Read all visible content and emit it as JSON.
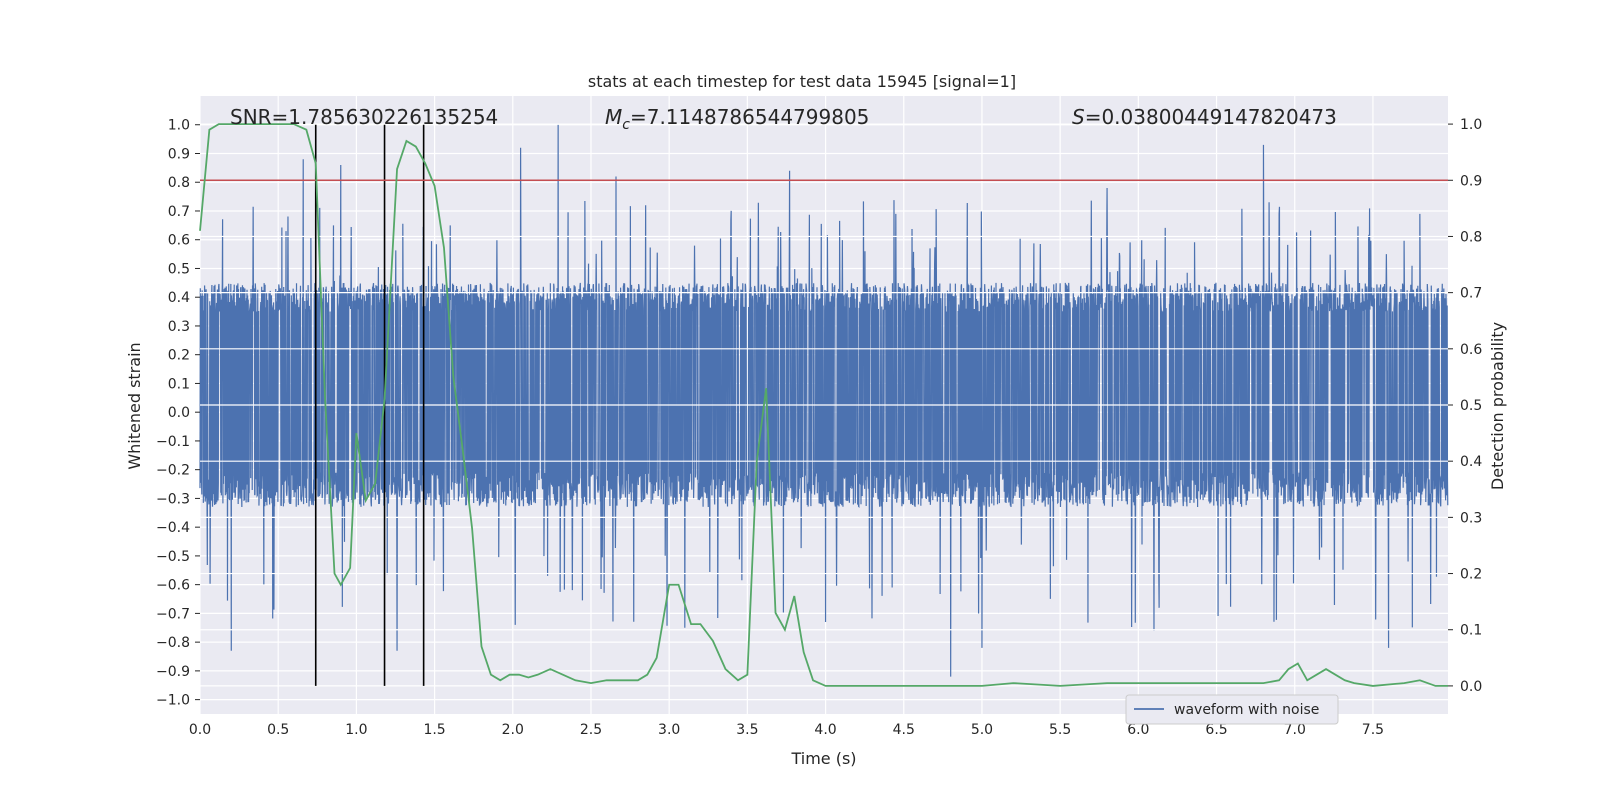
{
  "chart_data": {
    "type": "line",
    "title": "stats at each timestep for test data 15945 [signal=1]",
    "xlabel": "Time (s)",
    "ylabel_left": "Whitened strain",
    "ylabel_right": "Detection probability",
    "xlim": [
      0.0,
      7.98
    ],
    "ylim_left": [
      -1.05,
      1.1
    ],
    "ylim_right": [
      -0.05,
      1.05
    ],
    "x_ticks": [
      0.0,
      0.5,
      1.0,
      1.5,
      2.0,
      2.5,
      3.0,
      3.5,
      4.0,
      4.5,
      5.0,
      5.5,
      6.0,
      6.5,
      7.0,
      7.5
    ],
    "x_tick_labels": [
      "0.0",
      "0.5",
      "1.0",
      "1.5",
      "2.0",
      "2.5",
      "3.0",
      "3.5",
      "4.0",
      "4.5",
      "5.0",
      "5.5",
      "6.0",
      "6.5",
      "7.0",
      "7.5"
    ],
    "y_left_ticks": [
      -1.0,
      -0.9,
      -0.8,
      -0.7,
      -0.6,
      -0.5,
      -0.4,
      -0.3,
      -0.2,
      -0.1,
      0.0,
      0.1,
      0.2,
      0.3,
      0.4,
      0.5,
      0.6,
      0.7,
      0.8,
      0.9,
      1.0
    ],
    "y_left_tick_labels": [
      "−1.0",
      "−0.9",
      "−0.8",
      "−0.7",
      "−0.6",
      "−0.5",
      "−0.4",
      "−0.3",
      "−0.2",
      "−0.1",
      "0.0",
      "0.1",
      "0.2",
      "0.3",
      "0.4",
      "0.5",
      "0.6",
      "0.7",
      "0.8",
      "0.9",
      "1.0"
    ],
    "y_right_ticks": [
      0.0,
      0.1,
      0.2,
      0.3,
      0.4,
      0.5,
      0.6,
      0.7,
      0.8,
      0.9,
      1.0
    ],
    "y_right_tick_labels": [
      "0.0",
      "0.1",
      "0.2",
      "0.3",
      "0.4",
      "0.5",
      "0.6",
      "0.7",
      "0.8",
      "0.9",
      "1.0"
    ],
    "grid": true,
    "annotations": {
      "snr": "SNR=1.785630226135254",
      "mc_symbol": "M",
      "mc_sub": "c",
      "mc_value": "=7.1148786544799805",
      "s_symbol": "S",
      "s_value": "=0.03800449147820473"
    },
    "legend": {
      "placement": "lower-right",
      "label": "waveform with noise"
    },
    "threshold": {
      "y_right": 0.9,
      "color": "#c44e52"
    },
    "vertical_markers_x": [
      0.74,
      1.18,
      1.43
    ],
    "noise": {
      "color": "#4c72b0",
      "sample_rate": 512,
      "duration": 7.98,
      "band_min": -0.33,
      "band_max": 0.45,
      "spikes": [
        [
          0.2,
          -0.83
        ],
        [
          0.66,
          0.88
        ],
        [
          0.9,
          0.86
        ],
        [
          1.26,
          -0.83
        ],
        [
          2.05,
          0.92
        ],
        [
          2.29,
          1.0
        ],
        [
          2.66,
          0.82
        ],
        [
          3.77,
          0.84
        ],
        [
          4.8,
          -0.92
        ],
        [
          5.0,
          -0.82
        ],
        [
          6.8,
          0.93
        ],
        [
          7.6,
          -0.82
        ],
        [
          0.55,
          0.63
        ],
        [
          1.6,
          0.65
        ],
        [
          5.8,
          0.78
        ],
        [
          7.8,
          0.69
        ],
        [
          6.1,
          -0.76
        ],
        [
          3.1,
          -0.75
        ],
        [
          6.9,
          0.69
        ],
        [
          4.0,
          -0.73
        ]
      ]
    },
    "series": [
      {
        "name": "",
        "axis": "right",
        "color": "#55a868",
        "x": [
          0.0,
          0.06,
          0.12,
          0.2,
          0.4,
          0.6,
          0.68,
          0.74,
          0.8,
          0.86,
          0.9,
          0.96,
          1.0,
          1.06,
          1.12,
          1.18,
          1.26,
          1.32,
          1.38,
          1.44,
          1.5,
          1.56,
          1.62,
          1.68,
          1.74,
          1.8,
          1.86,
          1.92,
          1.98,
          2.04,
          2.1,
          2.16,
          2.24,
          2.32,
          2.4,
          2.5,
          2.6,
          2.7,
          2.8,
          2.86,
          2.92,
          3.0,
          3.06,
          3.14,
          3.2,
          3.28,
          3.36,
          3.44,
          3.5,
          3.56,
          3.62,
          3.68,
          3.74,
          3.8,
          3.86,
          3.92,
          4.0,
          4.2,
          4.6,
          4.8,
          5.0,
          5.2,
          5.5,
          5.8,
          6.2,
          6.4,
          6.6,
          6.8,
          6.9,
          6.96,
          7.02,
          7.08,
          7.14,
          7.2,
          7.26,
          7.32,
          7.38,
          7.5,
          7.7,
          7.8,
          7.9,
          7.98
        ],
        "y": [
          0.81,
          0.99,
          1.0,
          1.0,
          1.0,
          1.0,
          0.99,
          0.93,
          0.51,
          0.2,
          0.18,
          0.21,
          0.45,
          0.33,
          0.36,
          0.51,
          0.92,
          0.97,
          0.96,
          0.93,
          0.89,
          0.78,
          0.55,
          0.42,
          0.28,
          0.07,
          0.02,
          0.01,
          0.02,
          0.02,
          0.015,
          0.02,
          0.03,
          0.02,
          0.01,
          0.005,
          0.01,
          0.01,
          0.01,
          0.02,
          0.05,
          0.18,
          0.18,
          0.11,
          0.11,
          0.08,
          0.03,
          0.01,
          0.02,
          0.4,
          0.53,
          0.13,
          0.1,
          0.16,
          0.06,
          0.01,
          0.0,
          0.0,
          0.0,
          0.0,
          0.0,
          0.005,
          0.0,
          0.005,
          0.005,
          0.005,
          0.005,
          0.005,
          0.01,
          0.03,
          0.04,
          0.01,
          0.02,
          0.03,
          0.02,
          0.01,
          0.005,
          0.0,
          0.005,
          0.01,
          0.0,
          0.0
        ]
      }
    ]
  }
}
